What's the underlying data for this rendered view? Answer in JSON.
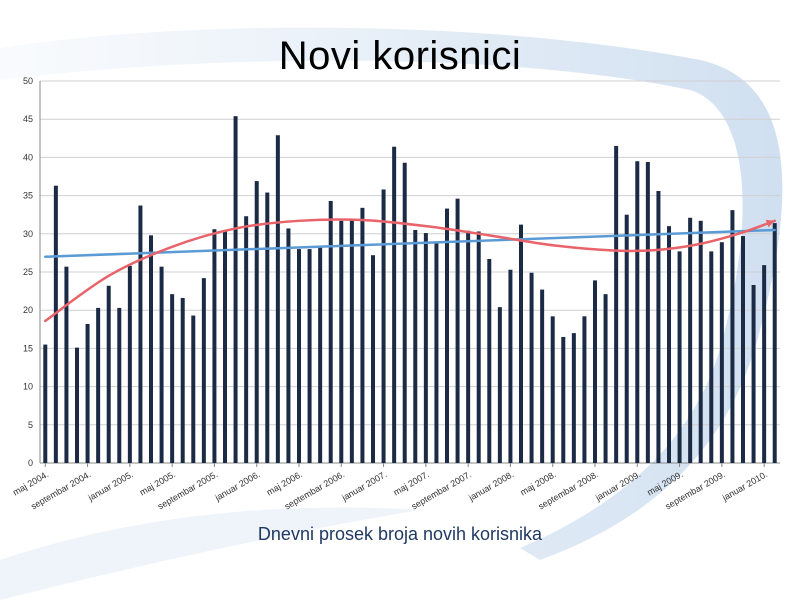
{
  "slide": {
    "title": "Novi korisnici",
    "subtitle": "Dnevni prosek broja novih korisnika"
  },
  "chart_data": {
    "type": "bar",
    "title": "Novi korisnici",
    "xlabel": "Dnevni prosek broja novih korisnika",
    "ylabel": "",
    "ylim": [
      0,
      50
    ],
    "yticks": [
      0,
      5,
      10,
      15,
      20,
      25,
      30,
      35,
      40,
      45,
      50
    ],
    "grid": true,
    "bar_color": "#1c2b45",
    "categories_note_labeled": [
      {
        "index": 0,
        "label": "maj 2004."
      },
      {
        "index": 4,
        "label": "septembar 2004."
      },
      {
        "index": 8,
        "label": "januar 2005."
      },
      {
        "index": 12,
        "label": "maj 2005."
      },
      {
        "index": 16,
        "label": "septembar 2005."
      },
      {
        "index": 20,
        "label": "januar 2006."
      },
      {
        "index": 24,
        "label": "maj 2006."
      },
      {
        "index": 28,
        "label": "septembar 2006."
      },
      {
        "index": 32,
        "label": "januar 2007."
      },
      {
        "index": 36,
        "label": "maj 2007."
      },
      {
        "index": 40,
        "label": "septembar 2007."
      },
      {
        "index": 44,
        "label": "januar 2008."
      },
      {
        "index": 48,
        "label": "maj 2008."
      },
      {
        "index": 52,
        "label": "septembar 2008."
      },
      {
        "index": 56,
        "label": "januar 2009."
      },
      {
        "index": 60,
        "label": "maj 2009."
      },
      {
        "index": 64,
        "label": "septembar 2009."
      },
      {
        "index": 68,
        "label": "januar 2010."
      }
    ],
    "values": [
      15.5,
      36.3,
      25.7,
      15.1,
      18.2,
      20.3,
      23.2,
      20.3,
      25.8,
      33.7,
      29.8,
      25.7,
      22.1,
      21.6,
      19.3,
      24.2,
      30.6,
      30.4,
      45.4,
      32.3,
      36.9,
      35.4,
      42.9,
      30.7,
      28.0,
      28.0,
      28.3,
      34.3,
      31.7,
      31.8,
      33.4,
      27.2,
      35.8,
      41.4,
      39.3,
      30.5,
      30.1,
      28.9,
      33.3,
      34.6,
      30.4,
      30.3,
      26.7,
      20.4,
      25.3,
      31.2,
      24.9,
      22.7,
      19.2,
      16.5,
      17.0,
      19.2,
      23.9,
      22.1,
      41.5,
      32.5,
      39.5,
      39.4,
      35.6,
      31.0,
      27.7,
      32.1,
      31.7,
      27.7,
      28.9,
      33.1,
      29.7,
      23.3,
      25.9,
      31.4
    ],
    "trendlines": [
      {
        "type": "linear",
        "color": "#5b9bd5",
        "points": [
          [
            0,
            27.0
          ],
          [
            69,
            30.5
          ]
        ]
      },
      {
        "type": "polynomial",
        "color": "#e8636a",
        "points": [
          [
            0,
            18.6
          ],
          [
            6,
            24.5
          ],
          [
            12,
            28.3
          ],
          [
            18,
            30.7
          ],
          [
            24,
            31.7
          ],
          [
            30,
            31.8
          ],
          [
            36,
            31.0
          ],
          [
            42,
            29.8
          ],
          [
            48,
            28.5
          ],
          [
            54,
            27.8
          ],
          [
            58,
            27.9
          ],
          [
            62,
            28.7
          ],
          [
            66,
            30.2
          ],
          [
            69,
            31.7
          ]
        ]
      }
    ]
  }
}
